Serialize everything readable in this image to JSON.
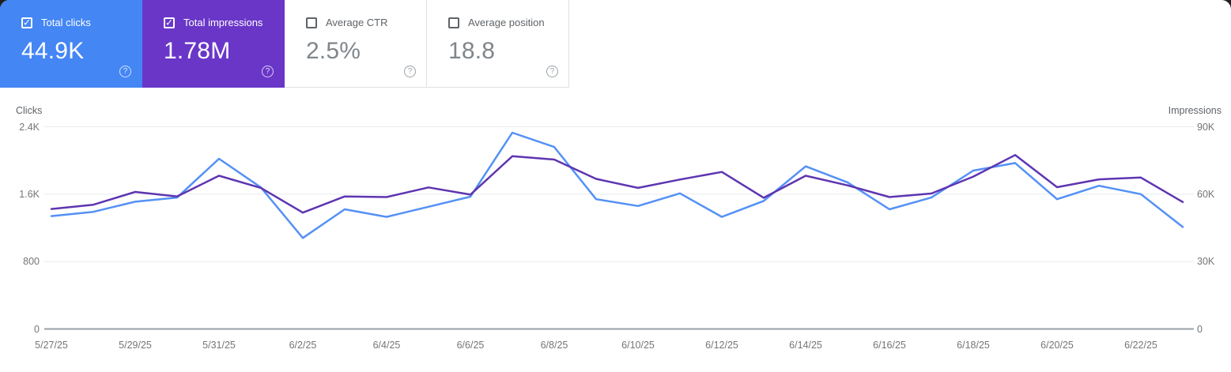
{
  "cards": [
    {
      "label": "Total clicks",
      "value": "44.9K",
      "checked": true,
      "color": "#4486f4"
    },
    {
      "label": "Total impressions",
      "value": "1.78M",
      "checked": true,
      "color": "#6a36c8"
    },
    {
      "label": "Average CTR",
      "value": "2.5%",
      "checked": false,
      "color": "#ffffff"
    },
    {
      "label": "Average position",
      "value": "18.8",
      "checked": false,
      "color": "#ffffff"
    }
  ],
  "help_icon_glyph": "?",
  "check_icon_glyph": "✓",
  "chart_data": {
    "type": "line",
    "x": [
      "5/27/25",
      "5/28/25",
      "5/29/25",
      "5/30/25",
      "5/31/25",
      "6/1/25",
      "6/2/25",
      "6/3/25",
      "6/4/25",
      "6/5/25",
      "6/6/25",
      "6/7/25",
      "6/8/25",
      "6/9/25",
      "6/10/25",
      "6/11/25",
      "6/12/25",
      "6/13/25",
      "6/14/25",
      "6/15/25",
      "6/16/25",
      "6/17/25",
      "6/18/25",
      "6/19/25",
      "6/20/25",
      "6/21/25",
      "6/22/25",
      "6/23/25"
    ],
    "x_tick_every": 2,
    "series": [
      {
        "name": "Clicks",
        "color": "#5491f5",
        "axis": "left",
        "values": [
          1340,
          1390,
          1510,
          1560,
          2020,
          1680,
          1080,
          1420,
          1330,
          1450,
          1570,
          2330,
          2160,
          1540,
          1460,
          1610,
          1330,
          1520,
          1930,
          1740,
          1420,
          1560,
          1880,
          1970,
          1540,
          1700,
          1600,
          1210
        ]
      },
      {
        "name": "Impressions",
        "color": "#5e35b1",
        "axis": "right",
        "values": [
          53400,
          55300,
          61000,
          59000,
          68200,
          62800,
          51800,
          59000,
          58700,
          63000,
          59800,
          76900,
          75400,
          66800,
          62800,
          66500,
          69900,
          58400,
          68200,
          63900,
          58700,
          60300,
          67800,
          77400,
          63100,
          66600,
          67400,
          56500
        ]
      }
    ],
    "left_axis": {
      "title": "Clicks",
      "ticks": [
        "2.4K",
        "1.6K",
        "800",
        "0"
      ],
      "max": 2400,
      "min": 0
    },
    "right_axis": {
      "title": "Impressions",
      "ticks": [
        "90K",
        "60K",
        "30K",
        "0"
      ],
      "max": 90000,
      "min": 0
    },
    "grid": {
      "color": "#e8eaed",
      "baseline_color": "#9aa0a6"
    },
    "legend_position": "none"
  }
}
